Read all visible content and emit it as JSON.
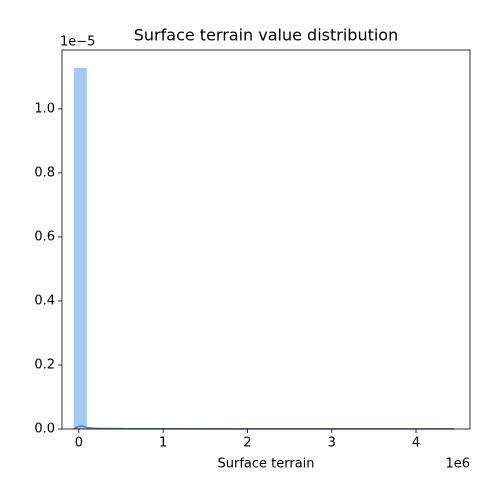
{
  "chart_data": {
    "type": "histogram",
    "title": "Surface terrain value distribution",
    "x_label": "Surface terrain",
    "x_offset_label": "1e6",
    "y_offset_label": "1e−5",
    "bins": [
      -0.06,
      0.095,
      0.25,
      0.405,
      0.56,
      0.715,
      0.87,
      1.025,
      1.18,
      1.335,
      1.49,
      1.645,
      1.8,
      1.955,
      2.11,
      2.265,
      2.42,
      2.575,
      2.73,
      2.885,
      3.04,
      3.195,
      3.35,
      3.505,
      3.66,
      3.815,
      3.97,
      4.125,
      4.28,
      4.435
    ],
    "values": [
      1.128,
      0.004,
      0.002,
      0.0015,
      0.001,
      0.001,
      0.001,
      0.0008,
      0.0008,
      0.0006,
      0.0006,
      0.0005,
      0.0005,
      0.0005,
      0.0004,
      0.0004,
      0.0004,
      0.0004,
      0.0003,
      0.0003,
      0.0003,
      0.0003,
      0.0003,
      0.0002,
      0.0002,
      0.0002,
      0.0002,
      0.0002,
      0.0002
    ],
    "color": "#a1c9f4",
    "kde": {
      "x": [
        -0.06,
        0.0,
        0.03,
        0.06,
        0.1,
        0.2,
        0.5,
        1,
        2,
        3,
        4,
        4.45
      ],
      "y": [
        0.001,
        0.008,
        0.01,
        0.008,
        0.004,
        0.002,
        0.001,
        0.0008,
        0.0005,
        0.0004,
        0.0003,
        0.0002
      ],
      "color": "#4878d0"
    },
    "xlim": [
      -0.2,
      4.64
    ],
    "ylim": [
      0,
      1.184
    ],
    "xticks": [
      0,
      1,
      2,
      3,
      4
    ],
    "yticks": [
      {
        "value": 0,
        "label": "0.0"
      },
      0.2,
      0.4,
      0.6,
      0.8,
      {
        "value": 1,
        "label": "1.0"
      }
    ],
    "grid": false
  }
}
